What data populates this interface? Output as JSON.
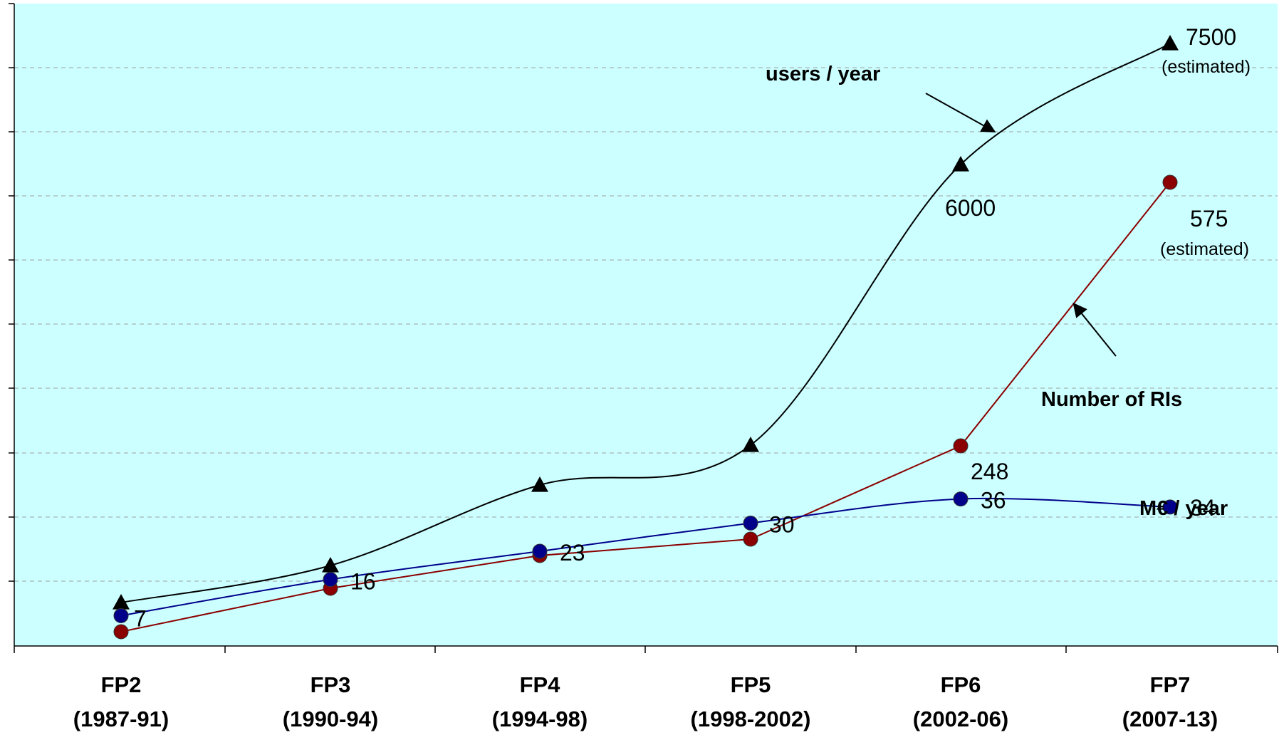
{
  "chart_data": {
    "type": "line",
    "title": "",
    "xlabel": "",
    "ylabel": "",
    "grid": true,
    "categories": [
      {
        "name": "FP2",
        "period": "(1987-91)"
      },
      {
        "name": "FP3",
        "period": "(1990-94)"
      },
      {
        "name": "FP4",
        "period": "(1994-98)"
      },
      {
        "name": "FP5",
        "period": "(1998-2002)"
      },
      {
        "name": "FP6",
        "period": "(2002-06)"
      },
      {
        "name": "FP7",
        "period": "(2007-13)"
      }
    ],
    "series": [
      {
        "name": "users / year",
        "color": "#000000",
        "marker": "triangle",
        "smooth": true,
        "values": [
          700,
          1300,
          2500,
          3100,
          6000,
          7500
        ],
        "labels": [
          null,
          null,
          null,
          null,
          "6000",
          "7500"
        ],
        "notes": [
          null,
          null,
          null,
          null,
          null,
          "(estimated)"
        ]
      },
      {
        "name": "Number of RIs",
        "color": "#8b0000",
        "marker": "circle",
        "smooth": false,
        "values": [
          12,
          55,
          90,
          105,
          248,
          575
        ],
        "labels": [
          null,
          null,
          null,
          null,
          "248",
          "575"
        ],
        "notes": [
          null,
          null,
          null,
          null,
          null,
          "(estimated)"
        ]
      },
      {
        "name": "M€ / year",
        "color": "#00008b",
        "marker": "circle",
        "smooth": true,
        "values": [
          7,
          16,
          23,
          30,
          36,
          34
        ],
        "labels": [
          "7",
          "16",
          "23",
          "30",
          "36",
          "34"
        ],
        "notes": [
          null,
          null,
          null,
          null,
          null,
          null
        ]
      }
    ]
  },
  "colors": {
    "plot_background": "#ccffff",
    "gridline": "#a0a0a0",
    "axis": "#000000"
  }
}
